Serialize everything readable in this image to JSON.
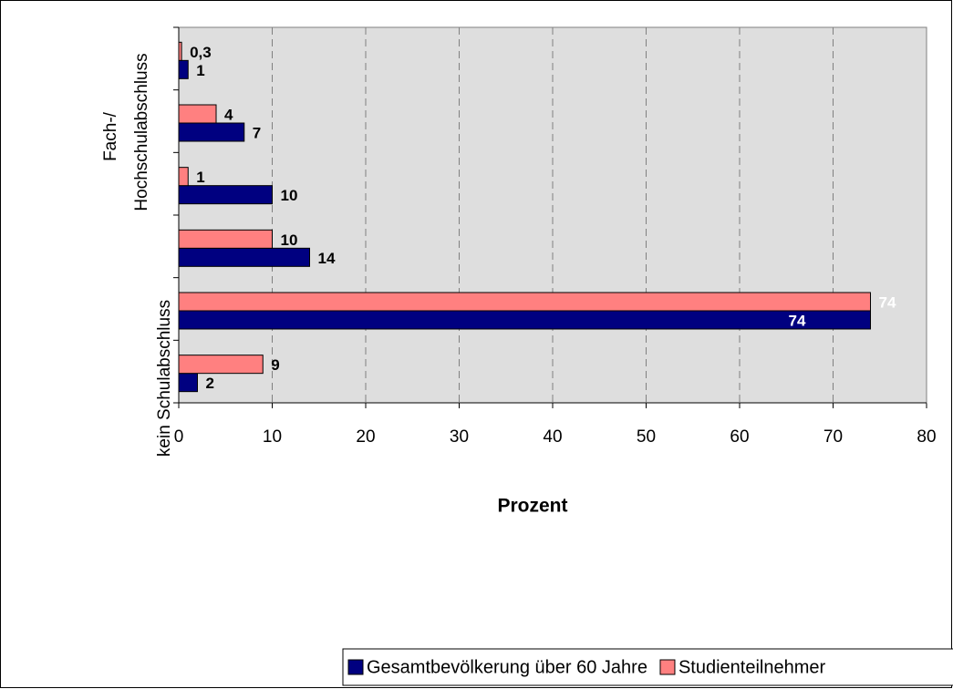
{
  "chart_data": {
    "type": "bar",
    "orientation": "horizontal",
    "xlabel": "Prozent",
    "ylabel_low": "kein Schulabschluss",
    "ylabel_high": [
      "Fach-/",
      "Hochschulabschluss"
    ],
    "categories": [
      null,
      null,
      null,
      null,
      null,
      null
    ],
    "series": [
      {
        "name": "Gesamtbevölkerung über 60 Jahre",
        "color": "#000080",
        "values": [
          2,
          74,
          14,
          10,
          7,
          1
        ]
      },
      {
        "name": "Studienteilnehmer",
        "color": "#ff8080",
        "values": [
          9,
          74,
          10,
          1,
          4,
          0.3
        ],
        "value_labels": [
          "9",
          "74",
          "10",
          "1",
          "4",
          "0,3"
        ]
      }
    ],
    "xlim": [
      0,
      80
    ],
    "xticks": [
      0,
      10,
      20,
      30,
      40,
      50,
      60,
      70,
      80
    ],
    "grid": true,
    "plot_background": "#dedede",
    "legend": "bottom"
  }
}
